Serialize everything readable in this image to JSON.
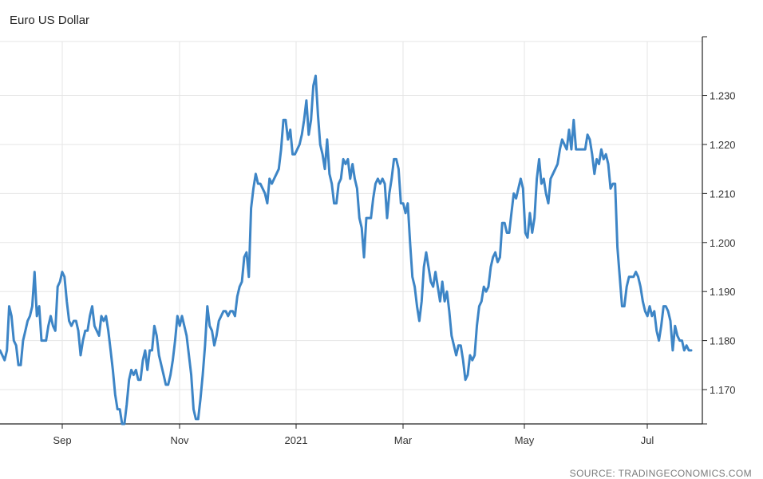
{
  "chart_data": {
    "type": "line",
    "title": "Euro US Dollar",
    "source": "SOURCE: TRADINGECONOMICS.COM",
    "x_tick_labels": [
      "Sep",
      "Nov",
      "2021",
      "Mar",
      "May",
      "Jul"
    ],
    "ylim": [
      1.163,
      1.241
    ],
    "y_ticks": [
      1.17,
      1.18,
      1.19,
      1.2,
      1.21,
      1.22,
      1.23
    ],
    "y_tick_labels": [
      "1.170",
      "1.180",
      "1.190",
      "1.200",
      "1.210",
      "1.220",
      "1.230"
    ],
    "grid": true,
    "y_axis_side": "right",
    "line_color": "#3d85c6",
    "series": [
      {
        "values": [
          1.178,
          1.177,
          1.176,
          1.178,
          1.187,
          1.185,
          1.18,
          1.179,
          1.175,
          1.175,
          1.18,
          1.182,
          1.184,
          1.185,
          1.187,
          1.194,
          1.185,
          1.187,
          1.18,
          1.18,
          1.18,
          1.183,
          1.185,
          1.183,
          1.182,
          1.191,
          1.192,
          1.194,
          1.193,
          1.188,
          1.184,
          1.183,
          1.184,
          1.184,
          1.182,
          1.177,
          1.18,
          1.182,
          1.182,
          1.185,
          1.187,
          1.183,
          1.182,
          1.181,
          1.185,
          1.184,
          1.185,
          1.182,
          1.178,
          1.174,
          1.169,
          1.166,
          1.166,
          1.163,
          1.163,
          1.167,
          1.172,
          1.174,
          1.173,
          1.174,
          1.172,
          1.172,
          1.176,
          1.178,
          1.174,
          1.178,
          1.178,
          1.183,
          1.181,
          1.177,
          1.175,
          1.173,
          1.171,
          1.171,
          1.173,
          1.176,
          1.18,
          1.185,
          1.183,
          1.185,
          1.183,
          1.181,
          1.177,
          1.173,
          1.166,
          1.164,
          1.164,
          1.168,
          1.173,
          1.179,
          1.187,
          1.183,
          1.182,
          1.179,
          1.181,
          1.184,
          1.185,
          1.186,
          1.186,
          1.185,
          1.186,
          1.186,
          1.185,
          1.189,
          1.191,
          1.192,
          1.197,
          1.198,
          1.193,
          1.207,
          1.211,
          1.214,
          1.212,
          1.212,
          1.211,
          1.21,
          1.208,
          1.213,
          1.212,
          1.213,
          1.214,
          1.215,
          1.219,
          1.225,
          1.225,
          1.221,
          1.223,
          1.218,
          1.218,
          1.219,
          1.22,
          1.222,
          1.225,
          1.229,
          1.222,
          1.225,
          1.232,
          1.234,
          1.226,
          1.22,
          1.218,
          1.215,
          1.221,
          1.214,
          1.212,
          1.208,
          1.208,
          1.212,
          1.213,
          1.217,
          1.216,
          1.217,
          1.213,
          1.216,
          1.213,
          1.211,
          1.205,
          1.203,
          1.197,
          1.205,
          1.205,
          1.205,
          1.209,
          1.212,
          1.213,
          1.212,
          1.213,
          1.212,
          1.205,
          1.21,
          1.213,
          1.217,
          1.217,
          1.215,
          1.208,
          1.208,
          1.206,
          1.208,
          1.2,
          1.193,
          1.191,
          1.187,
          1.184,
          1.188,
          1.195,
          1.198,
          1.195,
          1.192,
          1.191,
          1.194,
          1.191,
          1.188,
          1.192,
          1.188,
          1.19,
          1.186,
          1.181,
          1.179,
          1.177,
          1.179,
          1.179,
          1.176,
          1.172,
          1.173,
          1.177,
          1.176,
          1.177,
          1.183,
          1.187,
          1.188,
          1.191,
          1.19,
          1.191,
          1.195,
          1.197,
          1.198,
          1.196,
          1.197,
          1.204,
          1.204,
          1.202,
          1.202,
          1.206,
          1.21,
          1.209,
          1.211,
          1.213,
          1.211,
          1.202,
          1.201,
          1.206,
          1.202,
          1.205,
          1.213,
          1.217,
          1.212,
          1.213,
          1.21,
          1.208,
          1.213,
          1.214,
          1.215,
          1.216,
          1.219,
          1.221,
          1.22,
          1.219,
          1.223,
          1.219,
          1.225,
          1.219,
          1.219,
          1.219,
          1.219,
          1.219,
          1.222,
          1.221,
          1.218,
          1.214,
          1.217,
          1.216,
          1.219,
          1.217,
          1.218,
          1.216,
          1.211,
          1.212,
          1.212,
          1.199,
          1.193,
          1.187,
          1.187,
          1.191,
          1.193,
          1.193,
          1.193,
          1.194,
          1.193,
          1.191,
          1.188,
          1.186,
          1.185,
          1.187,
          1.185,
          1.186,
          1.182,
          1.18,
          1.183,
          1.187,
          1.187,
          1.186,
          1.184,
          1.178,
          1.183,
          1.181,
          1.18,
          1.18,
          1.178,
          1.179,
          1.178,
          1.178
        ]
      }
    ]
  }
}
